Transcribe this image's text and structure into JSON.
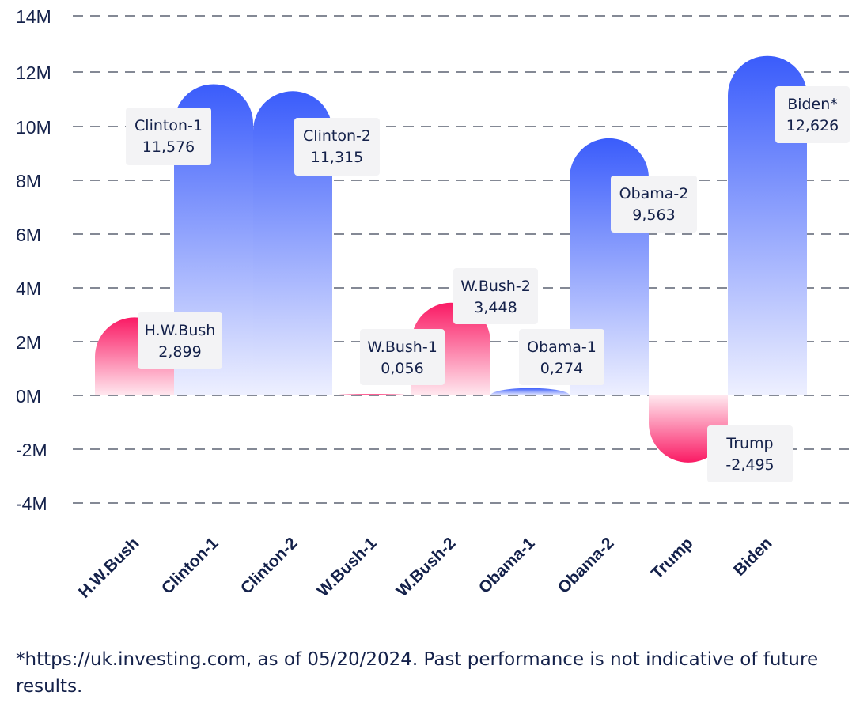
{
  "chart_data": {
    "type": "bar",
    "categories": [
      "H.W.Bush",
      "Clinton-1",
      "Clinton-2",
      "W.Bush-1",
      "W.Bush-2",
      "Obama-1",
      "Obama-2",
      "Trump",
      "Biden"
    ],
    "values": [
      2899,
      11576,
      11315,
      56,
      3448,
      274,
      9563,
      -2495,
      12626
    ],
    "data_labels": [
      {
        "name": "H.W.Bush",
        "value": "2,899"
      },
      {
        "name": "Clinton-1",
        "value": "11,576"
      },
      {
        "name": "Clinton-2",
        "value": "11,315"
      },
      {
        "name": "W.Bush-1",
        "value": "0,056"
      },
      {
        "name": "W.Bush-2",
        "value": "3,448"
      },
      {
        "name": "Obama-1",
        "value": "0,274"
      },
      {
        "name": "Obama-2",
        "value": "9,563"
      },
      {
        "name": "Trump",
        "value": "-2,495"
      },
      {
        "name": "Biden*",
        "value": "12,626"
      }
    ],
    "yticks": [
      "14M",
      "12M",
      "10M",
      "8M",
      "6M",
      "4M",
      "2M",
      "0M",
      "-2M",
      "-4M"
    ],
    "ylim": [
      -4000,
      14000
    ],
    "grid": true,
    "legend": "none",
    "title": "",
    "xlabel": "",
    "ylabel": ""
  },
  "colors": {
    "blue": "#3a5cfb",
    "pink": "#fa1a64",
    "text": "#14214a",
    "grid": "#5c6272",
    "label_bg": "#f3f3f5"
  },
  "footnote": "*https://uk.investing.com, as of 05/20/2024. Past performance is not indicative of future results."
}
